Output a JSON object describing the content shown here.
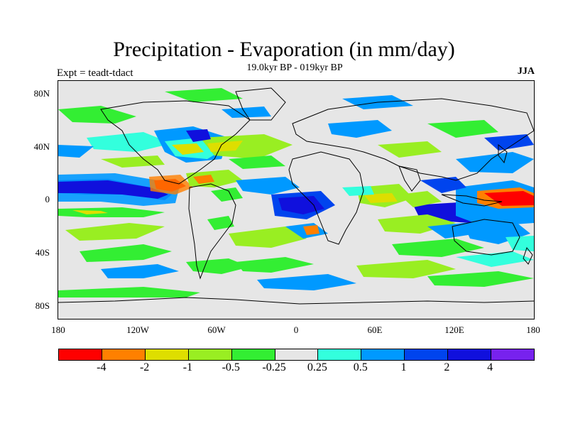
{
  "title": "Precipitation - Evaporation (in mm/day)",
  "subtitle": "19.0kyr BP - 019kyr BP",
  "left_label": "Expt = teadt-tdact",
  "right_label": "JJA",
  "lat_ticks": [
    "80N",
    "40N",
    "0",
    "40S",
    "80S"
  ],
  "lon_ticks": [
    "180",
    "120W",
    "60W",
    "0",
    "60E",
    "120E",
    "180"
  ],
  "colorbar": {
    "colors": [
      "#ff0000",
      "#ff8000",
      "#dede00",
      "#99ee22",
      "#33ee33",
      "#e6e6e6",
      "#33ffdd",
      "#0099ff",
      "#0044ee",
      "#1010dd",
      "#7722ee"
    ],
    "labels": [
      "-4",
      "-2",
      "-1",
      "-0.5",
      "-0.25",
      "0.25",
      "0.5",
      "1",
      "2",
      "4"
    ]
  },
  "map": {
    "background": "#e6e6e6",
    "coastline_color": "#000000"
  }
}
